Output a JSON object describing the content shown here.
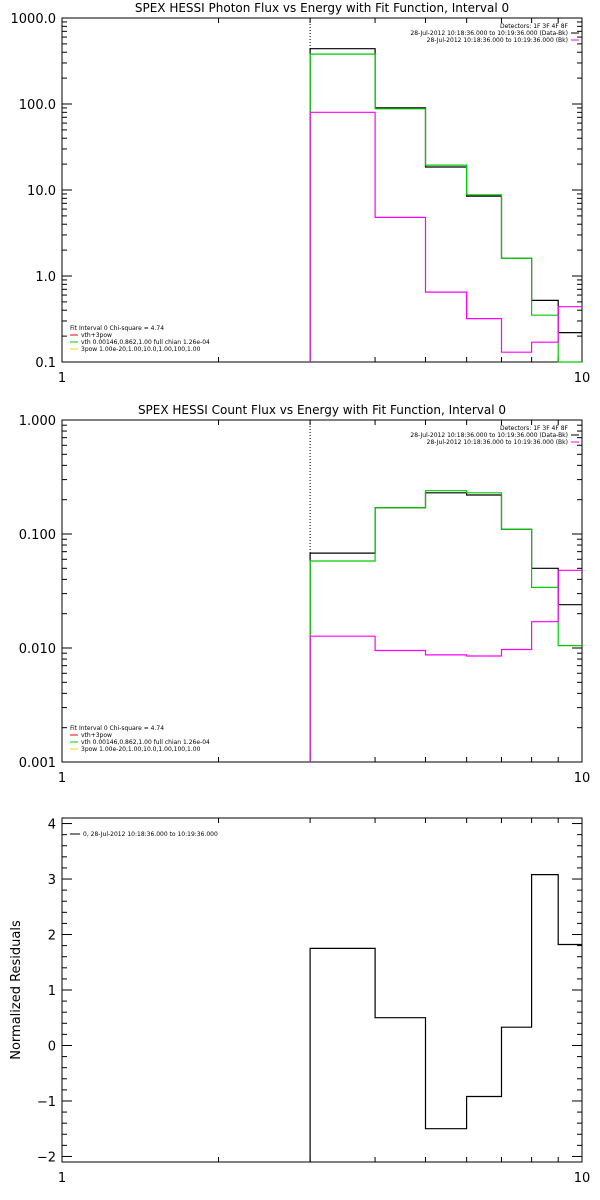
{
  "chart_data": [
    {
      "type": "line",
      "step": true,
      "title": "SPEX HESSI Photon Flux vs Energy with Fit Function, Interval 0",
      "xscale": "log",
      "yscale": "log",
      "xlim": [
        1,
        10
      ],
      "ylim": [
        0.1,
        1000
      ],
      "xticks": [
        {
          "v": 1,
          "label": "1"
        },
        {
          "v": 10,
          "label": "10"
        }
      ],
      "yticks": [
        {
          "v": 0.1,
          "label": "0.1"
        },
        {
          "v": 1,
          "label": "1.0"
        },
        {
          "v": 10,
          "label": "10.0"
        },
        {
          "v": 100,
          "label": "100.0"
        },
        {
          "v": 1000,
          "label": "1000.0"
        }
      ],
      "xlabel": "",
      "ylabel": "",
      "vline_x": 3,
      "legend_top_right": [
        "Detectors: 1F 3F 4F 8F",
        "28-Jul-2012 10:18:36.000 to 10:19:36.000 (Data-Bk)",
        "28-Jul-2012 10:18:36.000 to 10:19:36.000 (Bk)"
      ],
      "legend_top_right_colors": [
        "",
        "#000000",
        "#ff00ff"
      ],
      "legend_bottom_left_header": "Fit Interval 0   Chi-square = 4.74",
      "legend_bottom_left": [
        {
          "text": "vth+3pow",
          "color": "#ff0000"
        },
        {
          "text": "vth 0.00146,0.862,1.00   full chian 1.26e-04",
          "color": "#00cc00"
        },
        {
          "text": "3pow 1.00e-20,1.00,10.0,1.00,100,1.00",
          "color": "#ffd400"
        }
      ],
      "edges": [
        3,
        4,
        5,
        6,
        7,
        8,
        9,
        10
      ],
      "series": [
        {
          "color": "#000000",
          "values": [
            440,
            90,
            18.5,
            8.5,
            1.6,
            0.52,
            0.22
          ]
        },
        {
          "color": "#00cc00",
          "values": [
            380,
            88,
            19.5,
            8.8,
            1.6,
            0.35,
            0.1
          ]
        },
        {
          "color": "#ff00ff",
          "values": [
            80,
            4.8,
            0.65,
            0.32,
            0.13,
            0.17,
            0.44
          ]
        }
      ]
    },
    {
      "type": "line",
      "step": true,
      "title": "SPEX HESSI Count Flux vs Energy with Fit Function, Interval 0",
      "xscale": "log",
      "yscale": "log",
      "xlim": [
        1,
        10
      ],
      "ylim": [
        0.001,
        1
      ],
      "xticks": [
        {
          "v": 1,
          "label": "1"
        },
        {
          "v": 10,
          "label": "10"
        }
      ],
      "yticks": [
        {
          "v": 0.001,
          "label": "0.001"
        },
        {
          "v": 0.01,
          "label": "0.010"
        },
        {
          "v": 0.1,
          "label": "0.100"
        },
        {
          "v": 1,
          "label": "1.000"
        }
      ],
      "xlabel": "",
      "ylabel": "",
      "vline_x": 3,
      "legend_top_right": [
        "Detectors: 1F 3F 4F 8F",
        "28-Jul-2012 10:18:36.000 to 10:19:36.000 (Data-Bk)",
        "28-Jul-2012 10:18:36.000 to 10:19:36.000 (Bk)"
      ],
      "legend_top_right_colors": [
        "",
        "#000000",
        "#ff00ff"
      ],
      "legend_bottom_left_header": "Fit Interval 0   Chi-square = 4.74",
      "legend_bottom_left": [
        {
          "text": "vth+3pow",
          "color": "#ff0000"
        },
        {
          "text": "vth 0.00146,0.862,1.00   full chian 1.26e-04",
          "color": "#00cc00"
        },
        {
          "text": "3pow 1.00e-20,1.00,10.0,1.00,100,1.00",
          "color": "#ffd400"
        }
      ],
      "edges": [
        3,
        4,
        5,
        6,
        7,
        8,
        9,
        10
      ],
      "series": [
        {
          "color": "#000000",
          "values": [
            0.068,
            0.17,
            0.23,
            0.22,
            0.11,
            0.05,
            0.024
          ]
        },
        {
          "color": "#00cc00",
          "values": [
            0.058,
            0.17,
            0.24,
            0.23,
            0.11,
            0.034,
            0.0105
          ]
        },
        {
          "color": "#ff00ff",
          "values": [
            0.0127,
            0.0095,
            0.0087,
            0.0085,
            0.0097,
            0.017,
            0.048
          ]
        }
      ]
    },
    {
      "type": "line",
      "step": true,
      "title": "",
      "xscale": "log",
      "yscale": "linear",
      "xlim": [
        1,
        10
      ],
      "ylim": [
        -2.1,
        4.1
      ],
      "xticks": [
        {
          "v": 1,
          "label": "1"
        },
        {
          "v": 10,
          "label": "10"
        }
      ],
      "yticks": [
        {
          "v": -2,
          "label": "−2"
        },
        {
          "v": -1,
          "label": "−1"
        },
        {
          "v": 0,
          "label": "0"
        },
        {
          "v": 1,
          "label": "1"
        },
        {
          "v": 2,
          "label": "2"
        },
        {
          "v": 3,
          "label": "3"
        },
        {
          "v": 4,
          "label": "4"
        }
      ],
      "xlabel": "",
      "ylabel": "Normalized Residuals",
      "legend_top_left": [
        {
          "text": "0, 28-Jul-2012 10:18:36.000 to 10:19:36.000",
          "color": "#000000"
        }
      ],
      "edges": [
        3,
        4,
        5,
        6,
        7,
        8,
        9,
        10
      ],
      "series": [
        {
          "color": "#000000",
          "values": [
            1.75,
            0.5,
            -1.5,
            -0.92,
            0.33,
            3.08,
            1.82
          ]
        }
      ]
    }
  ]
}
